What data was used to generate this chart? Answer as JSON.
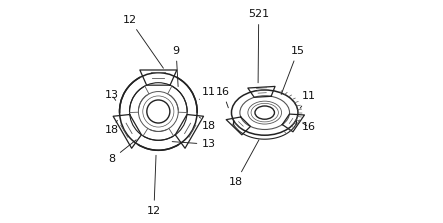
{
  "bg_color": "#ffffff",
  "line_color": "#555555",
  "line_color_dark": "#222222",
  "fig_width": 4.43,
  "fig_height": 2.23,
  "dpi": 100
}
